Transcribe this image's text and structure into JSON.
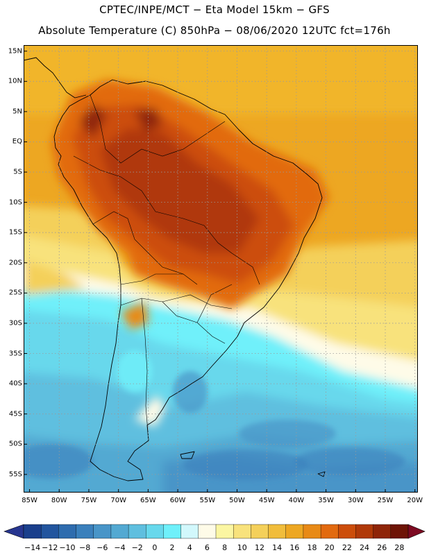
{
  "header": {
    "line1": "CPTEC/INPE/MCT −  Eta Model 15km − GFS",
    "line2": "Absolute Temperature (C) 850hPa − 08/06/2020 12UTC fct=176h"
  },
  "map": {
    "lat_range": [
      -58,
      16
    ],
    "lon_range": [
      -86,
      -19.5
    ],
    "lat_ticks": [
      "15N",
      "10N",
      "5N",
      "EQ",
      "5S",
      "10S",
      "15S",
      "20S",
      "25S",
      "30S",
      "35S",
      "40S",
      "45S",
      "50S",
      "55S"
    ],
    "lat_values": [
      15,
      10,
      5,
      0,
      -5,
      -10,
      -15,
      -20,
      -25,
      -30,
      -35,
      -40,
      -45,
      -50,
      -55
    ],
    "lon_ticks": [
      "85W",
      "80W",
      "75W",
      "70W",
      "65W",
      "60W",
      "55W",
      "50W",
      "45W",
      "40W",
      "35W",
      "30W",
      "25W",
      "20W"
    ],
    "lon_values": [
      -85,
      -80,
      -75,
      -70,
      -65,
      -60,
      -55,
      -50,
      -45,
      -40,
      -35,
      -30,
      -25,
      -20
    ],
    "grid_color": "#9a9a9a"
  },
  "colorbar": {
    "labels": [
      "−14",
      "−12",
      "−10",
      "−8",
      "−6",
      "−4",
      "−2",
      "0",
      "2",
      "4",
      "6",
      "8",
      "10",
      "12",
      "14",
      "16",
      "18",
      "20",
      "22",
      "24",
      "26",
      "28"
    ],
    "colors": [
      "#1a3f8c",
      "#22559e",
      "#2e6cae",
      "#3a80bc",
      "#4895c8",
      "#53a9d2",
      "#5fbfdf",
      "#67d8ec",
      "#6ff0fa",
      "#d2f8fc",
      "#fefbe8",
      "#fbf6a2",
      "#f8e27c",
      "#f4d05a",
      "#f1bd3b",
      "#eda722",
      "#e88a16",
      "#e26a0f",
      "#cc4d0a",
      "#b03908",
      "#8f2508",
      "#6e1406"
    ],
    "low_arrow_color": "#273690",
    "high_arrow_color": "#7d0a22"
  }
}
